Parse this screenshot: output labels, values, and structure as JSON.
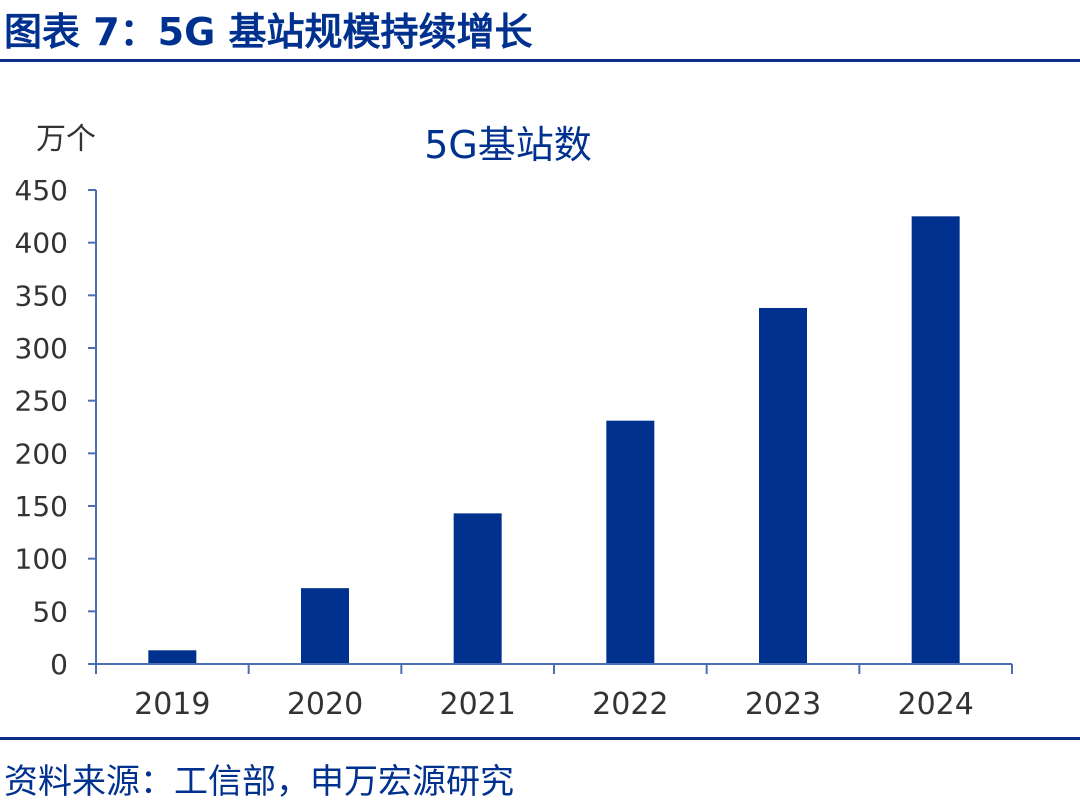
{
  "header": {
    "figure_title": "图表 7：5G 基站规模持续增长"
  },
  "footer": {
    "source": "资料来源：工信部，申万宏源研究"
  },
  "chart_data": {
    "type": "bar",
    "title": "5G基站数",
    "unit_label": "万个",
    "categories": [
      "2019",
      "2020",
      "2021",
      "2022",
      "2023",
      "2024"
    ],
    "series": [
      {
        "values": [
          13,
          72,
          143,
          231,
          338,
          425
        ]
      }
    ],
    "ylim": [
      0,
      450
    ],
    "yticks": [
      0,
      50,
      100,
      150,
      200,
      250,
      300,
      350,
      400,
      450
    ],
    "grid": false,
    "legend": "none",
    "colors": {
      "bar": "#00318f",
      "axis": "#4a6fb5",
      "text": "#333333"
    }
  }
}
